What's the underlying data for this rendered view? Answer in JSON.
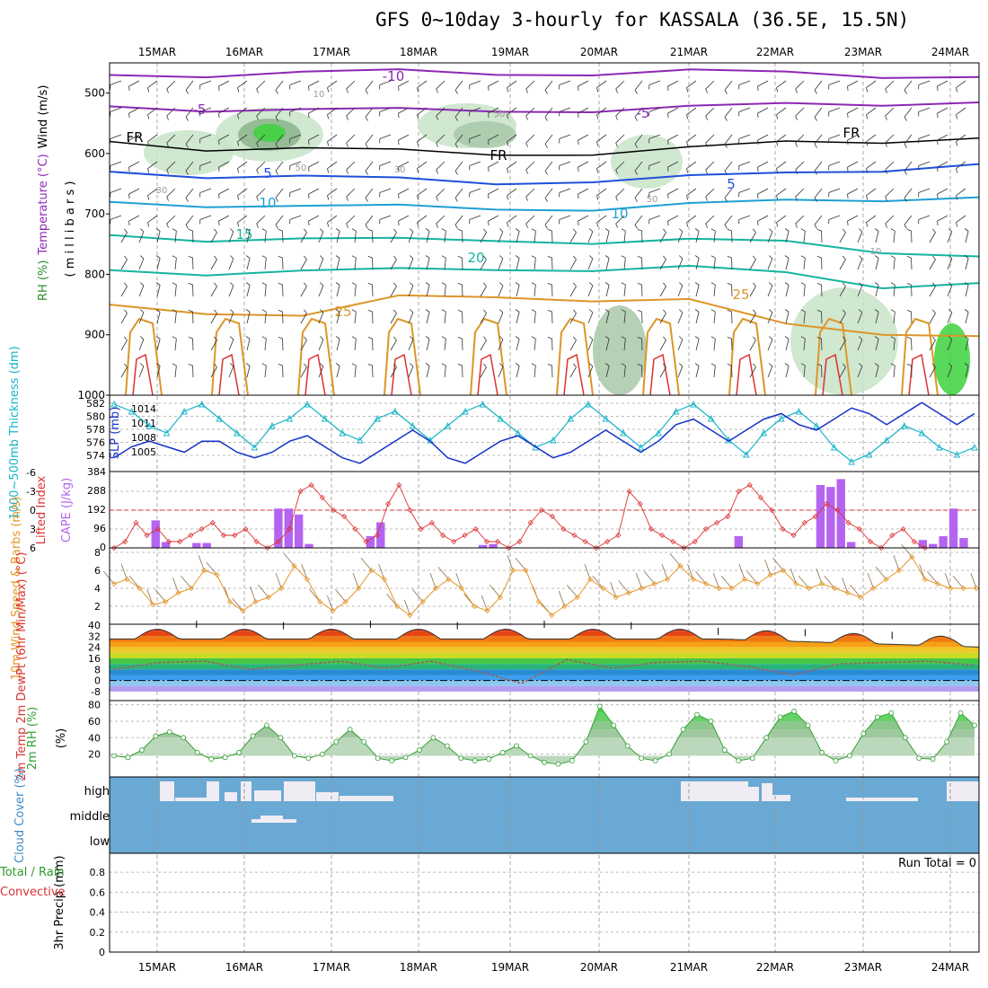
{
  "title": "GFS 0~10day 3-hourly for KASSALA (36.5E, 15.5N)",
  "colors": {
    "rh_shade": [
      "#e6f5e6",
      "#c8e3c8",
      "#a8c8a8",
      "#8cb48c",
      "#3cd23c"
    ],
    "temp_upper": "#8c28b4",
    "temp_mid": "#1e50dc",
    "temp_low": "#1ea0d2",
    "temp_warm": "#14b4a0",
    "temp_hot": "#dc9628",
    "thickness": "#14b4c8",
    "slp": "#1432c8",
    "lifted": "#dc3232",
    "cape": "#b464f0",
    "wind10": "#e69628",
    "dewpoint": "#966464",
    "rh2m": "#32a032",
    "cloud_bg": "#6aa9d4",
    "cloud": "#f0ecf4"
  },
  "chart_data": [
    {
      "type": "line",
      "panel": "upper-air",
      "x_dates": [
        "15MAR",
        "16MAR",
        "17MAR",
        "18MAR",
        "19MAR",
        "20MAR",
        "21MAR",
        "22MAR",
        "23MAR",
        "24MAR"
      ],
      "ylabel_parts": [
        "RH (%)",
        "Temperature (°C)",
        "Wind (m/s)"
      ],
      "yunit": "( m i l l i b a r s )",
      "ylim": [
        1000,
        450
      ],
      "yticks": [
        "500",
        "600",
        "700",
        "800",
        "900",
        "1000"
      ],
      "contour_labels": [
        "-10",
        "-5",
        "-5",
        "FR",
        "FR",
        "FR",
        "5",
        "5",
        "10",
        "10",
        "15",
        "20",
        "25",
        "25",
        "10",
        "50",
        "50",
        "30",
        "30",
        "50",
        "10"
      ],
      "isotherms": [
        {
          "name": "-10",
          "y": [
            470,
            468,
            466,
            466,
            467,
            466,
            465,
            468,
            470,
            471
          ]
        },
        {
          "name": "-5",
          "y": [
            522,
            525,
            528,
            530,
            528,
            527,
            525,
            520,
            516,
            513
          ]
        },
        {
          "name": "FR",
          "y": [
            580,
            590,
            592,
            598,
            600,
            598,
            593,
            583,
            578,
            572
          ]
        },
        {
          "name": "5",
          "y": [
            630,
            635,
            638,
            645,
            648,
            643,
            640,
            635,
            625,
            615
          ]
        },
        {
          "name": "10",
          "y": [
            680,
            683,
            688,
            690,
            690,
            690,
            686,
            680,
            674,
            670
          ]
        },
        {
          "name": "15",
          "y": [
            735,
            740,
            742,
            745,
            742,
            745,
            745,
            748,
            760,
            768
          ]
        },
        {
          "name": "20",
          "y": [
            793,
            796,
            795,
            795,
            790,
            790,
            790,
            800,
            818,
            812
          ]
        },
        {
          "name": "25",
          "y": [
            850,
            860,
            870,
            840,
            835,
            840,
            845,
            885,
            895,
            900
          ]
        }
      ]
    },
    {
      "type": "line",
      "panel": "thickness-slp",
      "ylabel_left": "1000~500mb Thickness (dm)",
      "ylabel_right": "SLP (mb)",
      "yticks_left": [
        "582",
        "580",
        "578",
        "576",
        "574"
      ],
      "yticks_right": [
        "1014",
        "1011",
        "1008",
        "1005"
      ],
      "series": [
        {
          "name": "thickness",
          "values": [
            582,
            581,
            579,
            578,
            581,
            582,
            580,
            578,
            576,
            579,
            580,
            582,
            580,
            578,
            577,
            580,
            581,
            579,
            577,
            579,
            581,
            582,
            580,
            578,
            576,
            577,
            580,
            582,
            580,
            578,
            576,
            578,
            581,
            582,
            580,
            577,
            575,
            578,
            580,
            581,
            579,
            576,
            574,
            575,
            577,
            579,
            578,
            576,
            575,
            576
          ]
        },
        {
          "name": "slp",
          "values": [
            1005,
            1007,
            1008,
            1007,
            1006,
            1008,
            1008,
            1006,
            1005,
            1006,
            1008,
            1009,
            1007,
            1005,
            1004,
            1006,
            1008,
            1010,
            1008,
            1005,
            1004,
            1006,
            1008,
            1009,
            1007,
            1005,
            1006,
            1008,
            1010,
            1008,
            1006,
            1008,
            1011,
            1012,
            1010,
            1008,
            1010,
            1012,
            1013,
            1011,
            1010,
            1012,
            1014,
            1013,
            1011,
            1013,
            1015,
            1013,
            1011,
            1013
          ]
        }
      ]
    },
    {
      "type": "bar",
      "panel": "lifted-cape",
      "ylabel_left": "Lifted Index",
      "ylabel_right": "CAPE (J/kg)",
      "yticks_left": [
        "-6",
        "-3",
        "0",
        "3",
        "6"
      ],
      "yticks_right": [
        "384",
        "288",
        "192",
        "96",
        "0"
      ],
      "cape": [
        0,
        0,
        0,
        0,
        140,
        30,
        0,
        0,
        25,
        25,
        0,
        0,
        0,
        0,
        0,
        0,
        200,
        200,
        170,
        20,
        0,
        0,
        0,
        0,
        0,
        60,
        130,
        0,
        0,
        0,
        0,
        0,
        0,
        0,
        0,
        0,
        15,
        20,
        0,
        0,
        0,
        0,
        0,
        0,
        0,
        0,
        0,
        0,
        0,
        0,
        0,
        0,
        0,
        0,
        0,
        0,
        0,
        0,
        0,
        0,
        0,
        60,
        0,
        0,
        0,
        0,
        0,
        0,
        0,
        320,
        310,
        350,
        30,
        0,
        0,
        0,
        0,
        0,
        0,
        40,
        20,
        60,
        200,
        50,
        0
      ],
      "lifted": [
        6,
        5,
        2,
        4,
        3,
        5,
        5,
        4,
        3,
        2,
        4,
        4,
        3,
        5,
        6,
        5,
        3,
        -3,
        -4,
        -2,
        0,
        1,
        3,
        5,
        4,
        -1,
        -4,
        0,
        3,
        2,
        4,
        5,
        4,
        3,
        5,
        5,
        6,
        5,
        2,
        0,
        1,
        3,
        4,
        5,
        6,
        5,
        4,
        -3,
        -1,
        3,
        4,
        5,
        6,
        5,
        3,
        2,
        1,
        -3,
        -4,
        -2,
        0,
        3,
        4,
        2,
        1,
        -1,
        0,
        2,
        3,
        5,
        6,
        4,
        3,
        5,
        6
      ]
    },
    {
      "type": "line",
      "panel": "wind10m",
      "ylabel": "10m Wind Speed & Barbs (m/s)",
      "yticks": [
        "8",
        "6",
        "4",
        "2"
      ],
      "series": [
        {
          "name": "speed",
          "values": [
            4.5,
            5,
            4,
            2.2,
            2.5,
            3.5,
            4,
            6,
            5.5,
            2.5,
            1.5,
            2.5,
            3,
            4,
            6.5,
            5,
            2.5,
            1.5,
            2.5,
            4,
            6,
            5,
            2,
            1,
            2.5,
            4,
            5,
            4,
            2,
            1.5,
            3,
            6,
            6,
            2.5,
            1,
            2,
            3,
            5,
            4,
            3,
            3.5,
            4,
            4.5,
            5,
            6.5,
            5,
            4.5,
            4,
            4,
            5,
            4.5,
            5.5,
            6,
            4.5,
            4,
            4.5,
            4,
            3.5,
            3,
            4,
            5,
            6,
            7.5,
            5,
            4.5,
            4,
            4,
            4
          ]
        }
      ]
    },
    {
      "type": "area",
      "panel": "temp2m",
      "ylabel": "2m Temp 2m DewPt (6hr Min/Max) (°C)",
      "yticks": [
        "40",
        "32",
        "24",
        "16",
        "8",
        "0",
        "-8"
      ],
      "temp_max": [
        36,
        38,
        37,
        38,
        37,
        38,
        37,
        33,
        32,
        30,
        28
      ],
      "temp_min": [
        26,
        26,
        26,
        26,
        25,
        26,
        26,
        26,
        24,
        22,
        21
      ],
      "dewpoint": [
        8,
        13,
        14,
        8,
        11,
        14,
        9,
        14,
        7,
        -2,
        15,
        9,
        13,
        14,
        10,
        4,
        12,
        13,
        14,
        11
      ]
    },
    {
      "type": "area",
      "panel": "rh2m",
      "ylabel": "2m RH (%)",
      "yticks": [
        "80",
        "60",
        "40",
        "20"
      ],
      "values": [
        18,
        16,
        25,
        42,
        47,
        40,
        22,
        14,
        16,
        22,
        42,
        55,
        40,
        18,
        15,
        20,
        35,
        50,
        35,
        15,
        12,
        16,
        25,
        40,
        30,
        15,
        12,
        14,
        22,
        30,
        18,
        10,
        8,
        12,
        35,
        78,
        55,
        30,
        15,
        12,
        20,
        50,
        68,
        60,
        25,
        12,
        15,
        40,
        65,
        72,
        55,
        22,
        12,
        18,
        45,
        65,
        70,
        40,
        15,
        14,
        35,
        70,
        55
      ]
    },
    {
      "type": "bar",
      "panel": "cloud",
      "ylabel": "Cloud Cover (%)",
      "yticks": [
        "high",
        "middle",
        "low"
      ]
    },
    {
      "type": "bar",
      "panel": "precip",
      "ylabel": "3hr Precip (mm)",
      "ylabel_prefix": "Total / Rain",
      "ylabel_sub": "Convective",
      "yticks": [
        "0.8",
        "0.6",
        "0.4",
        "0.2",
        "0"
      ],
      "run_total": "Run Total = 0",
      "values": []
    }
  ]
}
